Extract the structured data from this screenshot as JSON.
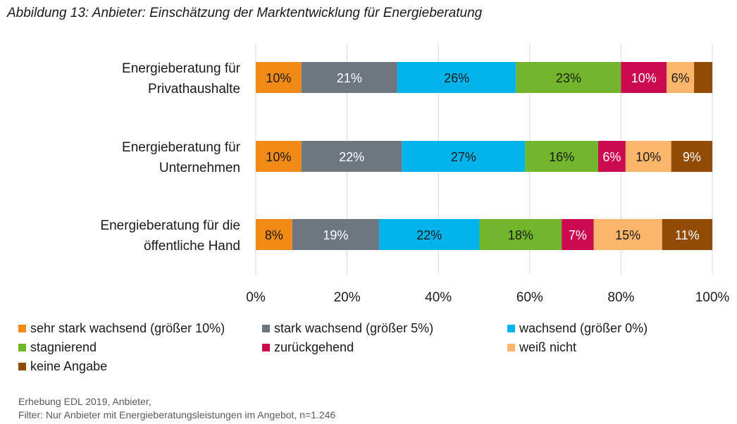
{
  "figure_title": "Abbildung 13: Anbieter: Einschätzung der Marktentwicklung für Energieberatung",
  "source": {
    "line1": "Erhebung EDL 2019, Anbieter,",
    "line2": "Filter: Nur Anbieter mit Energieberatungsleistungen im Angebot, n=1.246"
  },
  "chart_data": {
    "type": "bar",
    "orientation": "horizontal",
    "stacked": true,
    "categories": [
      [
        "Energieberatung für",
        "Privathaushalte"
      ],
      [
        "Energieberatung für",
        "Unternehmen"
      ],
      [
        "Energieberatung für die",
        "öffentliche Hand"
      ]
    ],
    "series": [
      {
        "name": "sehr stark wachsend (größer 10%)",
        "color": "#f28a17",
        "label_color": "#1a1a1a",
        "values": [
          10,
          10,
          8
        ],
        "labels": [
          "10%",
          "10%",
          "8%"
        ]
      },
      {
        "name": "stark wachsend (größer 5%)",
        "color": "#6e7680",
        "label_color": "#ffffff",
        "values": [
          21,
          22,
          19
        ],
        "labels": [
          "21%",
          "22%",
          "19%"
        ]
      },
      {
        "name": "wachsend (größer 0%)",
        "color": "#00b3eb",
        "label_color": "#1a1a1a",
        "values": [
          26,
          27,
          22
        ],
        "labels": [
          "26%",
          "27%",
          "22%"
        ]
      },
      {
        "name": "stagnierend",
        "color": "#72b62b",
        "label_color": "#1a1a1a",
        "values": [
          23,
          16,
          18
        ],
        "labels": [
          "23%",
          "16%",
          "18%"
        ]
      },
      {
        "name": "zurückgehend",
        "color": "#cc0a4f",
        "label_color": "#ffffff",
        "values": [
          10,
          6,
          7
        ],
        "labels": [
          "10%",
          "6%",
          "7%"
        ]
      },
      {
        "name": "weiß nicht",
        "color": "#fbb66b",
        "label_color": "#1a1a1a",
        "values": [
          6,
          10,
          15
        ],
        "labels": [
          "6%",
          "10%",
          "15%"
        ]
      },
      {
        "name": "keine Angabe",
        "color": "#924b04",
        "label_color": "#ffffff",
        "values": [
          4,
          9,
          11
        ],
        "labels": [
          "",
          "9%",
          "11%"
        ]
      }
    ],
    "xlim": [
      0,
      100
    ],
    "xticks": [
      "0%",
      "20%",
      "40%",
      "60%",
      "80%",
      "100%"
    ],
    "grid": true,
    "legend_position": "bottom"
  }
}
